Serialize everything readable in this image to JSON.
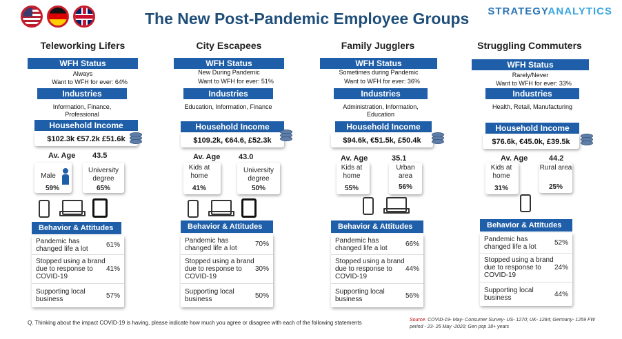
{
  "header": {
    "title": "The New Post-Pandemic Employee Groups",
    "brand_primary": "STRATEGY",
    "brand_accent": "ANALYTICS"
  },
  "labels": {
    "wfh_status": "WFH Status",
    "industries": "Industries",
    "household_income": "Household Income",
    "av_age": "Av. Age",
    "behavior": "Behavior & Attitudes"
  },
  "groups": [
    {
      "name": "Teleworking Lifers",
      "wfh": "Always",
      "wfh_forever": "Want to WFH for ever: 64%",
      "industries": "Information, Finance, Professional",
      "income": "$102.3k €57.2k £51.6k",
      "age": "43.5",
      "stat1_label": "Male",
      "stat1_value": "59%",
      "stat2_label": "University degree",
      "stat2_value": "65%",
      "behaviors": [
        {
          "label": "Pandemic has changed life a lot",
          "value": "61%"
        },
        {
          "label": "Stopped using a brand due to response to COVID-19",
          "value": "41%"
        },
        {
          "label": "Supporting local business",
          "value": "57%"
        }
      ]
    },
    {
      "name": "City Escapees",
      "wfh": "New During Pandemic",
      "wfh_forever": "Want to WFH for ever: 51%",
      "industries": "Education, Information, Finance",
      "income": "$109.2k, €64.6, £52.3k",
      "age": "43.0",
      "stat1_label": "Kids at home",
      "stat1_value": "41%",
      "stat2_label": "University degree",
      "stat2_value": "50%",
      "behaviors": [
        {
          "label": "Pandemic has changed life a lot",
          "value": "70%"
        },
        {
          "label": "Stopped using a brand due to response to COVID-19",
          "value": "30%"
        },
        {
          "label": "Supporting local business",
          "value": "50%"
        }
      ]
    },
    {
      "name": "Family Jugglers",
      "wfh": "Sometimes during Pandemic",
      "wfh_forever": "Want to WFH for ever: 36%",
      "industries": "Administration, Information, Education",
      "income": "$94.6k, €51.5k, £50.4k",
      "age": "35.1",
      "stat1_label": "Kids at home",
      "stat1_value": "55%",
      "stat2_label": "Urban area",
      "stat2_value": "56%",
      "behaviors": [
        {
          "label": "Pandemic has changed life a lot",
          "value": "66%"
        },
        {
          "label": "Stopped using a brand due to response to COVID-19",
          "value": "44%"
        },
        {
          "label": "Supporting local business",
          "value": "56%"
        }
      ]
    },
    {
      "name": "Struggling Commuters",
      "wfh": "Rarely/Never",
      "wfh_forever": "Want to WFH for ever: 33%",
      "industries": "Health, Retail, Manufacturing",
      "income": "$76.6k, €45.0k, £39.5k",
      "age": "44.2",
      "stat1_label": "Kids at home",
      "stat1_value": "31%",
      "stat2_label": "Rural area",
      "stat2_value": "25%",
      "behaviors": [
        {
          "label": "Pandemic has changed life a lot",
          "value": "52%"
        },
        {
          "label": "Stopped using a brand due to response to COVID-19",
          "value": "24%"
        },
        {
          "label": "Supporting local business",
          "value": "44%"
        }
      ]
    }
  ],
  "footer": {
    "question": "Q. Thinking about the impact COVID-19 is having, please indicate how much you agree or disagree with each of the following statements",
    "source_label": "Source:",
    "source_text": "COVID-19- May- Consumer Survey- US- 1270; UK- 1284; Germany- 1259 FW period - 23- 25 May -2020; Gen pop 18+ years"
  }
}
